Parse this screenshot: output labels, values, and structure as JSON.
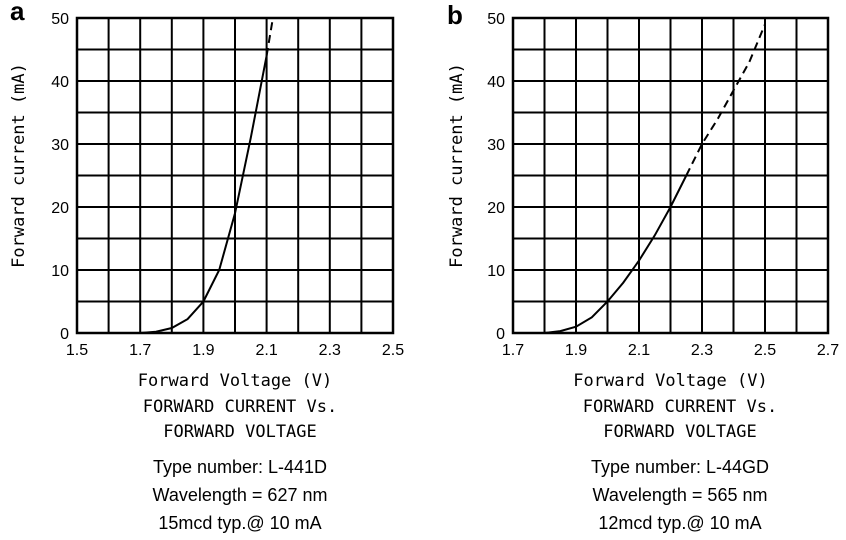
{
  "chart_data": [
    {
      "type": "line",
      "panel_label": "a",
      "xlabel": "Forward Voltage (V)",
      "ylabel": "Forward current (mA)",
      "xlim": [
        1.5,
        2.5
      ],
      "ylim": [
        0,
        50
      ],
      "x_ticks": [
        "1.5",
        "1.7",
        "1.9",
        "2.1",
        "2.3",
        "2.5"
      ],
      "y_ticks": [
        "0",
        "10",
        "20",
        "30",
        "40",
        "50"
      ],
      "grid": true,
      "series": [
        {
          "style": "solid",
          "x": [
            1.7,
            1.75,
            1.8,
            1.85,
            1.9,
            1.95,
            2.0,
            2.05,
            2.1
          ],
          "y": [
            0,
            0.2,
            0.8,
            2.2,
            5,
            10,
            19,
            31,
            44
          ]
        },
        {
          "style": "dashed",
          "x": [
            2.1,
            2.12
          ],
          "y": [
            44,
            50
          ]
        }
      ],
      "caption": {
        "title_lines": [
          "FORWARD CURRENT Vs.",
          "FORWARD VOLTAGE"
        ],
        "info_lines": [
          "Type number: L-441D",
          "Wavelength = 627 nm",
          "15mcd typ.@ 10 mA"
        ]
      }
    },
    {
      "type": "line",
      "panel_label": "b",
      "xlabel": "Forward Voltage (V)",
      "ylabel": "Forward current (mA)",
      "xlim": [
        1.7,
        2.7
      ],
      "ylim": [
        0,
        50
      ],
      "x_ticks": [
        "1.7",
        "1.9",
        "2.1",
        "2.3",
        "2.5",
        "2.7"
      ],
      "y_ticks": [
        "0",
        "10",
        "20",
        "30",
        "40",
        "50"
      ],
      "grid": true,
      "series": [
        {
          "style": "solid",
          "x": [
            1.8,
            1.85,
            1.9,
            1.95,
            2.0,
            2.05,
            2.1,
            2.15,
            2.2,
            2.25
          ],
          "y": [
            0,
            0.3,
            1,
            2.5,
            5,
            8,
            11.5,
            15.5,
            20,
            25
          ]
        },
        {
          "style": "dashed",
          "x": [
            2.25,
            2.3,
            2.35,
            2.4,
            2.45,
            2.5
          ],
          "y": [
            25,
            30,
            34,
            38.5,
            43,
            49
          ]
        }
      ],
      "caption": {
        "title_lines": [
          "FORWARD CURRENT Vs.",
          "FORWARD VOLTAGE"
        ],
        "info_lines": [
          "Type number: L-44GD",
          "Wavelength = 565 nm",
          "12mcd typ.@ 10 mA"
        ]
      }
    }
  ]
}
